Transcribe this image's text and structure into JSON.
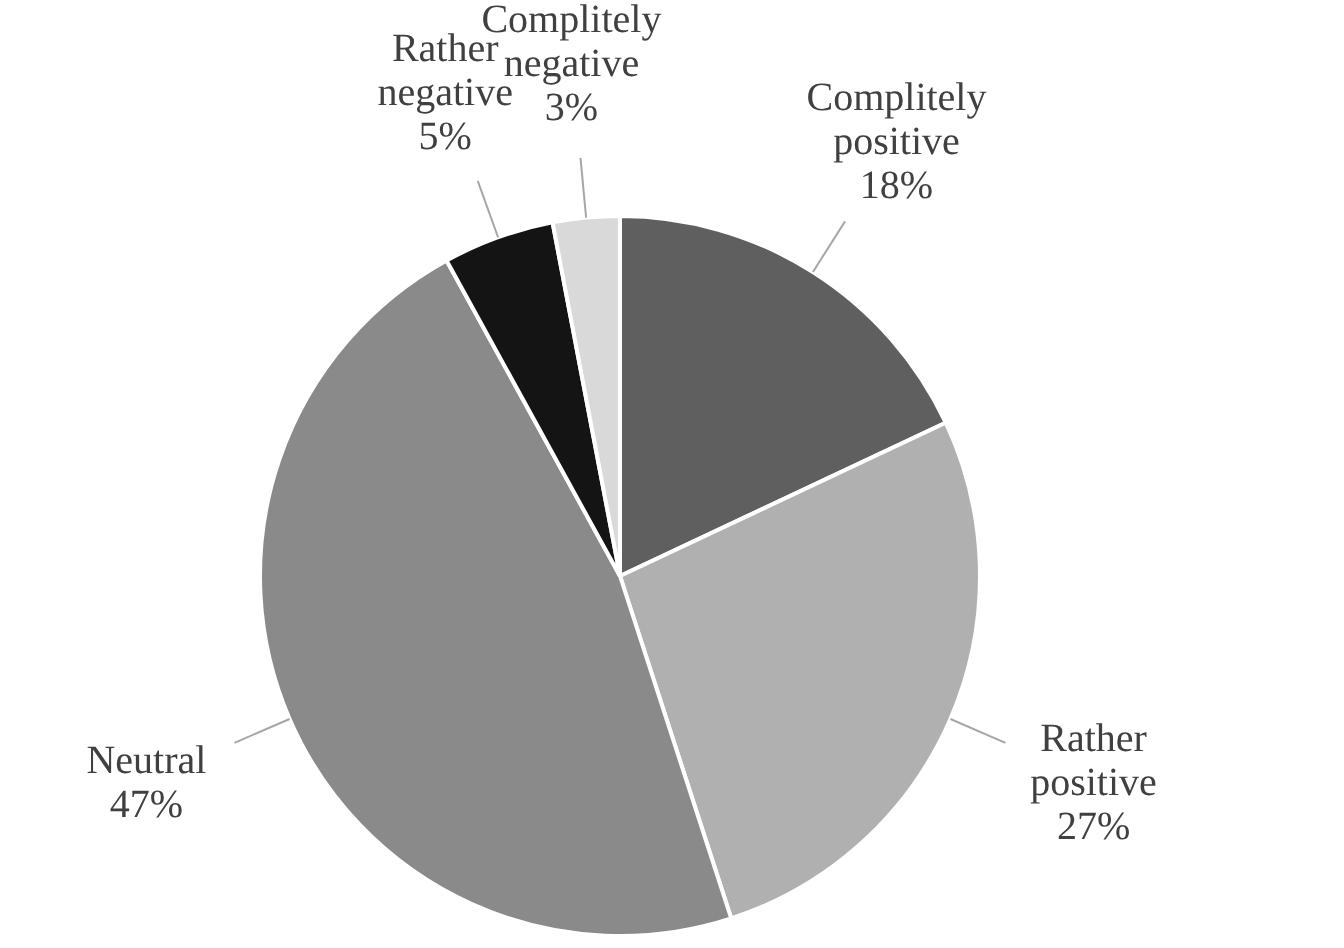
{
  "chart_data": {
    "type": "pie",
    "categories": [
      "Complitely positive",
      "Rather positive",
      "Neutral",
      "Rather negative",
      "Complitely negative"
    ],
    "values": [
      18,
      27,
      47,
      5,
      3
    ],
    "colors": [
      "#5f5f5f",
      "#b0b0b0",
      "#8a8a8a",
      "#141414",
      "#d9d9d9"
    ],
    "value_labels": [
      "18%",
      "27%",
      "47%",
      "5%",
      "3%"
    ]
  }
}
